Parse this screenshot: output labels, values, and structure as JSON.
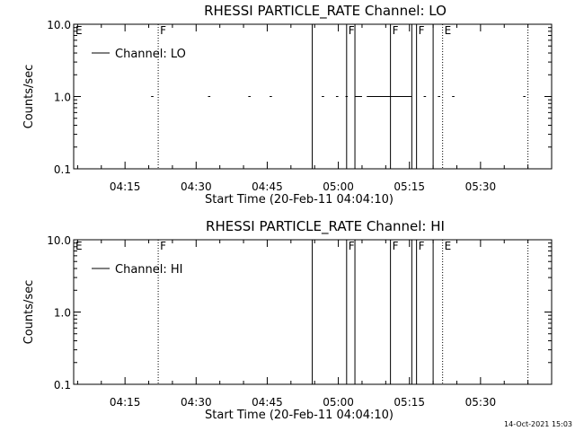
{
  "footer": {
    "timestamp": "14-Oct-2021 15:03"
  },
  "chart_data": [
    {
      "type": "line",
      "title": "RHESSI PARTICLE_RATE Channel: LO",
      "xlabel": "Start Time (20-Feb-11 04:04:10)",
      "ylabel": "Counts/sec",
      "y_scale": "log",
      "ylim": [
        0.1,
        10.0
      ],
      "xlim": [
        "04:04:10",
        "05:45:00"
      ],
      "y_ticks": [
        "10.0",
        "1.0",
        "0.1"
      ],
      "x_ticks": [
        "04:15",
        "04:30",
        "04:45",
        "05:00",
        "05:15",
        "05:30"
      ],
      "legend": {
        "label": "Channel: LO",
        "position": "top-left"
      },
      "series": [
        {
          "name": "Channel: LO",
          "segments": [
            {
              "x": [
                "04:20:30",
                "04:21:00"
              ],
              "y": [
                1.0,
                1.0
              ]
            },
            {
              "x": [
                "04:32:30",
                "04:33:00"
              ],
              "y": [
                1.0,
                1.0
              ]
            },
            {
              "x": [
                "04:41:00",
                "04:41:30"
              ],
              "y": [
                1.0,
                1.0
              ]
            },
            {
              "x": [
                "04:45:30",
                "04:46:00"
              ],
              "y": [
                1.0,
                1.0
              ]
            },
            {
              "x": [
                "04:56:30",
                "04:57:00"
              ],
              "y": [
                1.0,
                1.0
              ]
            },
            {
              "x": [
                "04:59:30",
                "05:00:00"
              ],
              "y": [
                1.0,
                1.0
              ]
            },
            {
              "x": [
                "05:01:30",
                "05:02:00"
              ],
              "y": [
                1.0,
                1.0
              ]
            },
            {
              "x": [
                "05:03:30",
                "05:05:00"
              ],
              "y": [
                1.0,
                1.0
              ]
            },
            {
              "x": [
                "05:06:00",
                "05:15:30"
              ],
              "y": [
                1.0,
                1.0
              ]
            },
            {
              "x": [
                "05:18:00",
                "05:18:30"
              ],
              "y": [
                1.0,
                1.0
              ]
            },
            {
              "x": [
                "05:21:00",
                "05:21:30"
              ],
              "y": [
                1.0,
                1.0
              ]
            },
            {
              "x": [
                "05:24:00",
                "05:24:30"
              ],
              "y": [
                1.0,
                1.0
              ]
            },
            {
              "x": [
                "05:39:00",
                "05:39:30"
              ],
              "y": [
                1.0,
                1.0
              ]
            }
          ]
        }
      ],
      "markers": [
        {
          "label": "E",
          "time": "04:04:10",
          "style": "dotted"
        },
        {
          "label": "F",
          "time": "04:22:00",
          "style": "dotted"
        },
        {
          "label": "",
          "time": "04:54:30",
          "style": "solid"
        },
        {
          "label": "F",
          "time": "05:01:45",
          "style": "solid"
        },
        {
          "label": "",
          "time": "05:03:30",
          "style": "solid"
        },
        {
          "label": "F",
          "time": "05:11:00",
          "style": "solid"
        },
        {
          "label": "",
          "time": "05:15:30",
          "style": "solid"
        },
        {
          "label": "F",
          "time": "05:16:30",
          "style": "solid"
        },
        {
          "label": "",
          "time": "05:20:00",
          "style": "solid"
        },
        {
          "label": "E",
          "time": "05:22:00",
          "style": "dotted"
        },
        {
          "label": "",
          "time": "05:40:00",
          "style": "dotted"
        }
      ]
    },
    {
      "type": "line",
      "title": "RHESSI PARTICLE_RATE Channel: HI",
      "xlabel": "Start Time (20-Feb-11 04:04:10)",
      "ylabel": "Counts/sec",
      "y_scale": "log",
      "ylim": [
        0.1,
        10.0
      ],
      "xlim": [
        "04:04:10",
        "05:45:00"
      ],
      "y_ticks": [
        "10.0",
        "1.0",
        "0.1"
      ],
      "x_ticks": [
        "04:15",
        "04:30",
        "04:45",
        "05:00",
        "05:15",
        "05:30"
      ],
      "legend": {
        "label": "Channel: HI",
        "position": "top-left"
      },
      "series": [
        {
          "name": "Channel: HI",
          "segments": []
        }
      ],
      "markers": [
        {
          "label": "E",
          "time": "04:04:10",
          "style": "dotted"
        },
        {
          "label": "F",
          "time": "04:22:00",
          "style": "dotted"
        },
        {
          "label": "",
          "time": "04:54:30",
          "style": "solid"
        },
        {
          "label": "F",
          "time": "05:01:45",
          "style": "solid"
        },
        {
          "label": "",
          "time": "05:03:30",
          "style": "solid"
        },
        {
          "label": "F",
          "time": "05:11:00",
          "style": "solid"
        },
        {
          "label": "",
          "time": "05:15:30",
          "style": "solid"
        },
        {
          "label": "F",
          "time": "05:16:30",
          "style": "solid"
        },
        {
          "label": "",
          "time": "05:20:00",
          "style": "solid"
        },
        {
          "label": "E",
          "time": "05:22:00",
          "style": "dotted"
        },
        {
          "label": "",
          "time": "05:40:00",
          "style": "dotted"
        }
      ]
    }
  ]
}
